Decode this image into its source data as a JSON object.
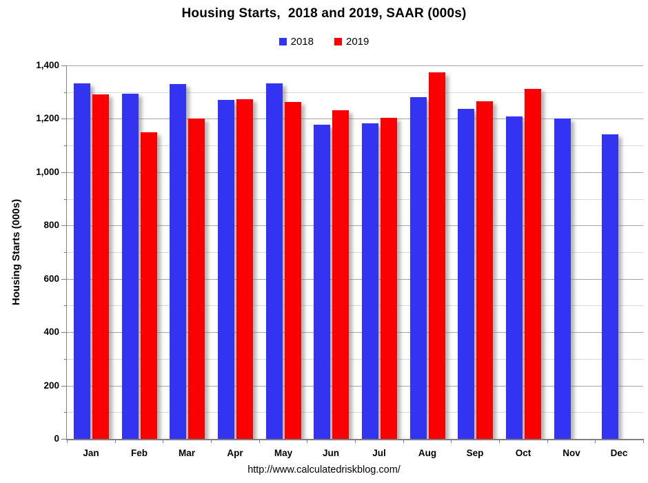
{
  "title": "Housing Starts,  2018 and 2019, SAAR (000s)",
  "legend": [
    {
      "label": "2018",
      "color": "#3333F2"
    },
    {
      "label": "2019",
      "color": "#FB0000"
    }
  ],
  "y_axis": {
    "title": "Housing Starts (000s)",
    "min": 0,
    "max": 1400,
    "major_step": 200,
    "minor_step": 100,
    "tick_labels": [
      "0",
      "200",
      "400",
      "600",
      "800",
      "1,000",
      "1,200",
      "1,400"
    ]
  },
  "footer": {
    "url": "http://www.calculatedriskblog.com/"
  },
  "colors": {
    "bar_2018": "#3333F2",
    "bar_2019": "#FB0000",
    "major_grid": "#A6A6A6",
    "minor_grid": "#D9D9D9",
    "axis": "#7F7F7F",
    "text": "#000000"
  },
  "chart_data": {
    "type": "bar",
    "title": "Housing Starts,  2018 and 2019, SAAR (000s)",
    "xlabel": "",
    "ylabel": "Housing Starts (000s)",
    "ylim": [
      0,
      1400
    ],
    "grid": true,
    "legend_position": "top-center",
    "categories": [
      "Jan",
      "Feb",
      "Mar",
      "Apr",
      "May",
      "Jun",
      "Jul",
      "Aug",
      "Sep",
      "Oct",
      "Nov",
      "Dec"
    ],
    "series": [
      {
        "name": "2018",
        "color": "#3333F2",
        "values": [
          1334,
          1294,
          1330,
          1270,
          1332,
          1178,
          1184,
          1280,
          1236,
          1210,
          1202,
          1142
        ]
      },
      {
        "name": "2019",
        "color": "#FB0000",
        "values": [
          1291,
          1149,
          1200,
          1273,
          1264,
          1233,
          1204,
          1375,
          1266,
          1312,
          null,
          null
        ]
      }
    ]
  }
}
